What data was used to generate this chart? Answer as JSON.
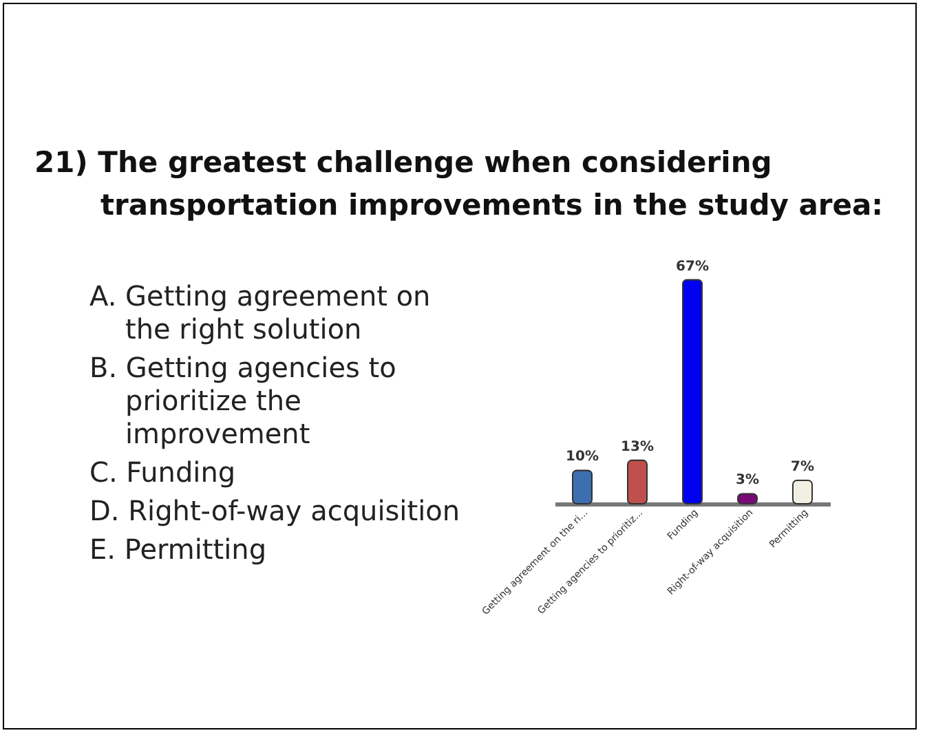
{
  "chart_data": {
    "type": "bar",
    "title": "21) The greatest challenge when considering transportation improvements in the study area:",
    "categories": [
      "Getting agreement on the ri...",
      "Getting agencies to prioritiz...",
      "Funding",
      "Right-of-way acquisition",
      "Permitting"
    ],
    "values": [
      10,
      13,
      67,
      3,
      7
    ],
    "value_labels": [
      "10%",
      "13%",
      "67%",
      "3%",
      "7%"
    ],
    "colors": [
      "#3d6fb0",
      "#c0504d",
      "#0000f0",
      "#7a0a7a",
      "#f2f0e2"
    ],
    "annotations": [
      "A. Getting agreement on the right solution",
      "B. Getting agencies to prioritize the improvement",
      "C. Funding",
      "D. Right-of-way acquisition",
      "E. Permitting"
    ]
  }
}
